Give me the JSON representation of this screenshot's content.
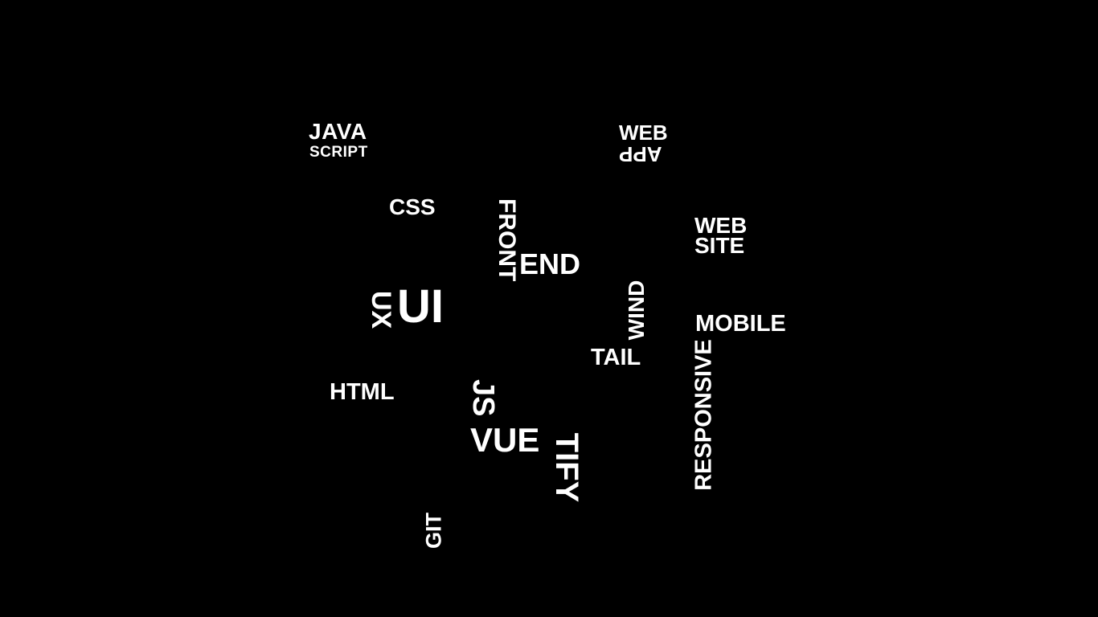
{
  "words": {
    "java": "JAVA",
    "script": "SCRIPT",
    "webapp_web": "WEB",
    "webapp_app": "APP",
    "css": "CSS",
    "front": "FRONT",
    "end": "END",
    "website_web": "WEB",
    "website_site": "SITE",
    "ux": "UX",
    "ui": "UI",
    "wind": "WIND",
    "tail": "TAIL",
    "mobile": "MOBILE",
    "responsive": "RESPONSIVE",
    "html": "HTML",
    "js": "JS",
    "vue": "VUE",
    "tify": "TIFY",
    "git": "GIT"
  },
  "colors": {
    "background": "#000000",
    "text": "#ffffff"
  }
}
